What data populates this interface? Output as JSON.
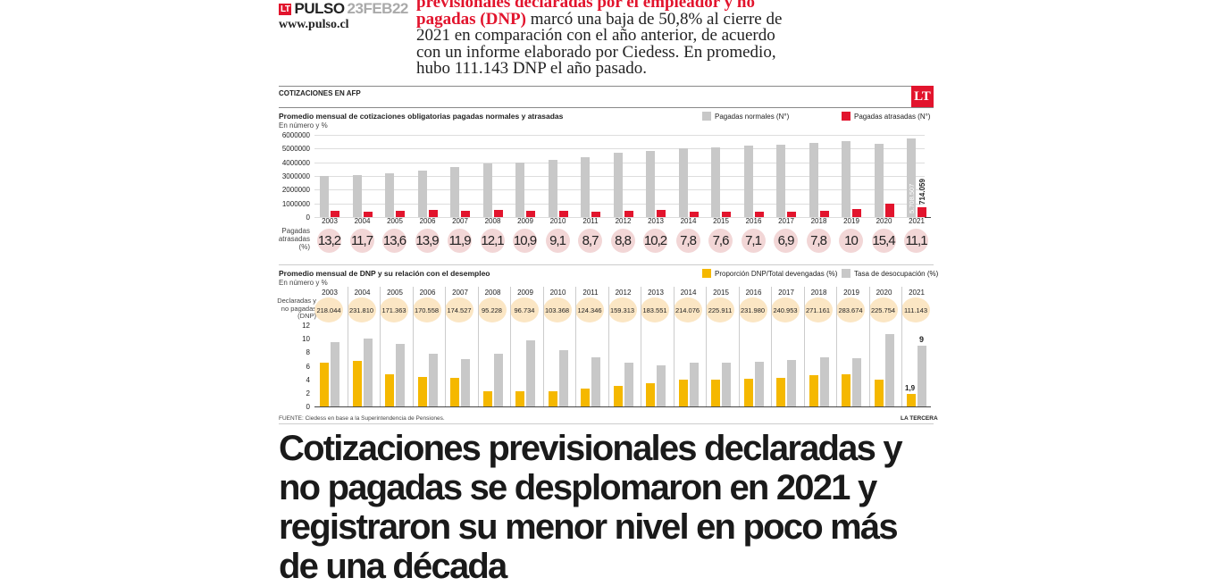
{
  "header": {
    "brand_badge": "LT",
    "brand_name": "PULSO",
    "brand_date": "23FEB22",
    "url": "www.pulso.cl",
    "lead_bold": "previsionales declaradas por el empleador y no pagadas (DNP)",
    "lead_rest": " marcó una baja de 50,8% al cierre de 2021 en comparación con el año anterior, de acuerdo con un informe elaborado por Ciedess. En promedio, hubo 111.143 DNP el año pasado."
  },
  "infographic": {
    "section_label": "COTIZACIONES EN AFP",
    "logo": "LT",
    "source": "FUENTE: Ciedess en base a la Superintendencia de Pensiones.",
    "credit": "LA TERCERA"
  },
  "chart_data": [
    {
      "type": "bar",
      "title": "Promedio mensual de cotizaciones obligatorias pagadas normales y atrasadas",
      "ylabel": "En número y %",
      "ylim": [
        0,
        6000000
      ],
      "yticks": [
        "6000000",
        "5000000",
        "4000000",
        "3000000",
        "2000000",
        "1000000",
        "0"
      ],
      "categories": [
        "2003",
        "2004",
        "2005",
        "2006",
        "2007",
        "2008",
        "2009",
        "2010",
        "2011",
        "2012",
        "2013",
        "2014",
        "2015",
        "2016",
        "2017",
        "2018",
        "2019",
        "2020",
        "2021"
      ],
      "series": [
        {
          "name": "Pagadas normales (N°)",
          "color": "#c8c8c8",
          "values": [
            2980000,
            3050000,
            3170000,
            3400000,
            3650000,
            3900000,
            4000000,
            4150000,
            4400000,
            4700000,
            4800000,
            5000000,
            5100000,
            5200000,
            5300000,
            5400000,
            5550000,
            5350000,
            5708507
          ]
        },
        {
          "name": "Pagadas atrasadas (N°)",
          "color": "#e2142d",
          "values": [
            430000,
            400000,
            480000,
            520000,
            470000,
            520000,
            470000,
            440000,
            420000,
            440000,
            540000,
            420000,
            420000,
            400000,
            380000,
            440000,
            560000,
            970000,
            714059
          ]
        }
      ],
      "annotations": {
        "normal_2021": "5.708.507",
        "late_2021": "714.059"
      },
      "pct_row_label": [
        "Pagadas",
        "atrasadas",
        "(%)"
      ],
      "pct_values": [
        "13,2",
        "11,7",
        "13,6",
        "13,9",
        "11,9",
        "12,1",
        "10,9",
        "9,1",
        "8,7",
        "8,8",
        "10,2",
        "7,8",
        "7,6",
        "7,1",
        "6,9",
        "7,8",
        "10",
        "15,4",
        "11,1"
      ]
    },
    {
      "type": "bar",
      "title": "Promedio mensual de DNP y su relación con el desempleo",
      "ylabel": "En número y %",
      "ylim": [
        0,
        12
      ],
      "yticks": [
        "12",
        "10",
        "8",
        "6",
        "4",
        "2",
        "0"
      ],
      "categories": [
        "2003",
        "2004",
        "2005",
        "2006",
        "2007",
        "2008",
        "2009",
        "2010",
        "2011",
        "2012",
        "2013",
        "2014",
        "2015",
        "2016",
        "2017",
        "2018",
        "2019",
        "2020",
        "2021"
      ],
      "dnp_row_label": [
        "Declaradas y",
        "no pagadas",
        "(DNP)"
      ],
      "dnp_values": [
        "218.044",
        "231.810",
        "171.363",
        "170.558",
        "174.527",
        "95.228",
        "96.734",
        "103.368",
        "124.346",
        "159.313",
        "183.551",
        "214.076",
        "225.911",
        "231.980",
        "240.953",
        "271.161",
        "283.674",
        "225.754",
        "111.143"
      ],
      "series": [
        {
          "name": "Proporción DNP/Total devengadas (%)",
          "color": "#f5b800",
          "values": [
            6.5,
            6.7,
            4.8,
            4.4,
            4.2,
            2.2,
            2.2,
            2.3,
            2.6,
            3.1,
            3.4,
            3.9,
            4.0,
            4.1,
            4.2,
            4.6,
            4.7,
            3.9,
            1.9
          ]
        },
        {
          "name": "Tasa de desocupación (%)",
          "color": "#c8c8c8",
          "values": [
            9.5,
            10.0,
            9.2,
            7.8,
            7.0,
            7.8,
            9.7,
            8.3,
            7.2,
            6.5,
            6.1,
            6.4,
            6.4,
            6.6,
            6.9,
            7.3,
            7.1,
            10.7,
            9.0
          ]
        }
      ],
      "annotations": {
        "dnp_2021": "1,9",
        "unemp_2021": "9"
      }
    }
  ],
  "headline": "Cotizaciones previsionales declaradas y no pagadas se desplomaron en 2021 y registraron su menor nivel en poco más de una década"
}
